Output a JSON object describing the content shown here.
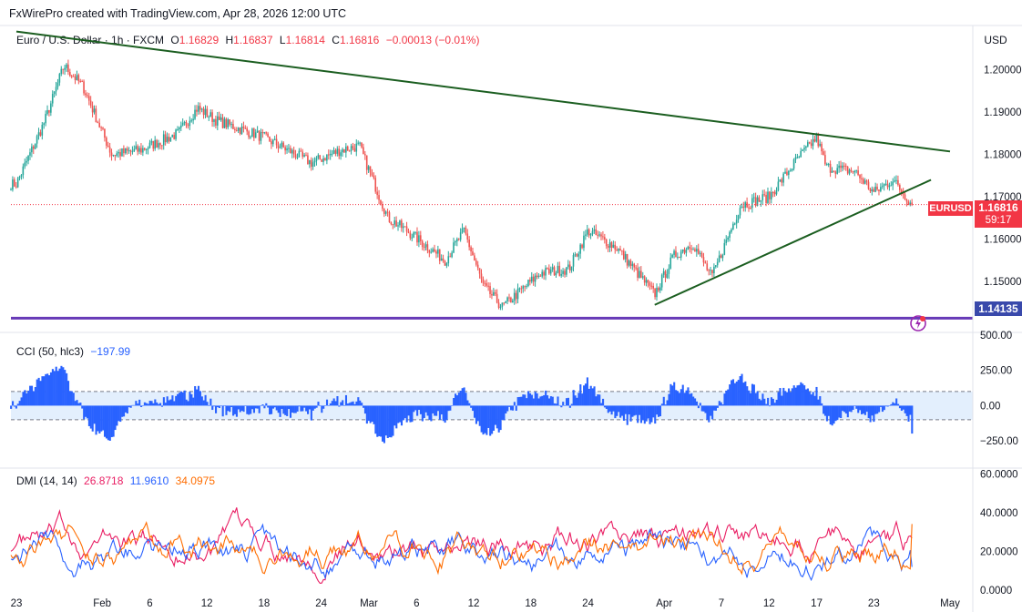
{
  "header": {
    "credit": "FxWirePro created with TradingView.com, Apr 28, 2026 12:00 UTC"
  },
  "main_legend": {
    "symbol": "Euro / U.S. Dollar · 1h · FXCM",
    "o_label": "O",
    "o_value": "1.16829",
    "h_label": "H",
    "h_value": "1.16837",
    "l_label": "L",
    "l_value": "1.16814",
    "c_label": "C",
    "c_value": "1.16816",
    "change": "−0.00013 (−0.01%)"
  },
  "currency_button": "USD",
  "price_tags": {
    "last_price": "1.16816",
    "symbol": "EURUSD",
    "countdown": "59:17",
    "support": "1.14135"
  },
  "cci_legend": {
    "label": "CCI (50, hlc3)",
    "value": "−197.99"
  },
  "dmi_legend": {
    "label": "DMI (14, 14)",
    "plus_di": "26.8718",
    "minus_di": "11.9610",
    "adx": "34.0975"
  },
  "colors": {
    "bull": "#26a69a",
    "bear": "#ef5350",
    "trendline": "#1b5e20",
    "support": "#673ab7",
    "cci": "#2962ff",
    "cci_band": "#e3effd",
    "plus_di": "#e91e63",
    "minus_di": "#2962ff",
    "adx": "#ff6d00",
    "price_label": "#f23645",
    "support_label": "#3949ab"
  },
  "chart_data": [
    {
      "type": "candlestick",
      "title": "Euro / U.S. Dollar · 1h · FXCM",
      "x_ticks": [
        "23",
        "Feb",
        "6",
        "12",
        "18",
        "24",
        "Mar",
        "6",
        "12",
        "18",
        "24",
        "Apr",
        "7",
        "12",
        "17",
        "23",
        "May"
      ],
      "y_ticks": [
        "1.20000",
        "1.19000",
        "1.18000",
        "1.17000",
        "1.16000",
        "1.15000"
      ],
      "ylim": [
        1.1395,
        1.21
      ],
      "last_price": 1.16816,
      "close_path": [
        {
          "x": "Jan 23",
          "y": 1.173
        },
        {
          "x": "Jan 26",
          "y": 1.188
        },
        {
          "x": "Jan 28",
          "y": 1.201
        },
        {
          "x": "Jan 30",
          "y": 1.196
        },
        {
          "x": "Feb 2",
          "y": 1.18
        },
        {
          "x": "Feb 5",
          "y": 1.181
        },
        {
          "x": "Feb 9",
          "y": 1.185
        },
        {
          "x": "Feb 11",
          "y": 1.191
        },
        {
          "x": "Feb 13",
          "y": 1.188
        },
        {
          "x": "Feb 18",
          "y": 1.184
        },
        {
          "x": "Feb 23",
          "y": 1.178
        },
        {
          "x": "Feb 26",
          "y": 1.181
        },
        {
          "x": "Feb 28",
          "y": 1.182
        },
        {
          "x": "Mar 3",
          "y": 1.165
        },
        {
          "x": "Mar 5",
          "y": 1.162
        },
        {
          "x": "Mar 9",
          "y": 1.155
        },
        {
          "x": "Mar 11",
          "y": 1.162
        },
        {
          "x": "Mar 13",
          "y": 1.149
        },
        {
          "x": "Mar 15",
          "y": 1.144
        },
        {
          "x": "Mar 19",
          "y": 1.152
        },
        {
          "x": "Mar 22",
          "y": 1.153
        },
        {
          "x": "Mar 24",
          "y": 1.162
        },
        {
          "x": "Mar 27",
          "y": 1.158
        },
        {
          "x": "Mar 31",
          "y": 1.147
        },
        {
          "x": "Apr 2",
          "y": 1.156
        },
        {
          "x": "Apr 4",
          "y": 1.159
        },
        {
          "x": "Apr 6",
          "y": 1.151
        },
        {
          "x": "Apr 9",
          "y": 1.168
        },
        {
          "x": "Apr 12",
          "y": 1.17
        },
        {
          "x": "Apr 15",
          "y": 1.179
        },
        {
          "x": "Apr 17",
          "y": 1.184
        },
        {
          "x": "Apr 18",
          "y": 1.177
        },
        {
          "x": "Apr 21",
          "y": 1.176
        },
        {
          "x": "Apr 23",
          "y": 1.171
        },
        {
          "x": "Apr 25",
          "y": 1.174
        },
        {
          "x": "Apr 27",
          "y": 1.16816
        }
      ],
      "trendlines": [
        {
          "name": "resistance",
          "from": {
            "x": "Jan 23",
            "y": 1.209
          },
          "to": {
            "x": "May 1",
            "y": 1.1807
          }
        },
        {
          "name": "support-trend",
          "from": {
            "x": "Mar 31",
            "y": 1.1445
          },
          "to": {
            "x": "Apr 29",
            "y": 1.174
          }
        }
      ],
      "horizontal_line": {
        "value": 1.14135
      }
    },
    {
      "type": "histogram",
      "title": "CCI (50, hlc3)",
      "y_ticks": [
        "500.00",
        "250.00",
        "0.00",
        "−250.00"
      ],
      "ylim": [
        -430,
        500
      ],
      "band": [
        -100,
        100
      ],
      "last_value": -197.99
    },
    {
      "type": "line",
      "title": "DMI (14, 14)",
      "y_ticks": [
        "60.0000",
        "40.0000",
        "20.0000",
        "0.0000"
      ],
      "ylim": [
        0,
        62
      ],
      "series": [
        {
          "name": "+DI",
          "last": 26.8718
        },
        {
          "name": "−DI",
          "last": 11.961
        },
        {
          "name": "ADX",
          "last": 34.0975
        }
      ]
    }
  ]
}
